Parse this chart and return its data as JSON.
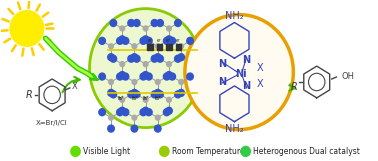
{
  "background_color": "#ffffff",
  "legend_items": [
    {
      "label": "Visible Light",
      "color": "#66dd00"
    },
    {
      "label": "Room Temperature",
      "color": "#99cc00"
    },
    {
      "label": "Heterogenous Dual catalyst",
      "color": "#33cc44"
    }
  ],
  "green_circle_color": "#88cc00",
  "green_circle_fill": "#eef8d0",
  "orange_circle_color": "#e8a000",
  "orange_circle_fill": "#fffbf0",
  "arrow_color": "#44bb00",
  "sun_color": "#ffee00",
  "lightning_color": "#44ee00",
  "text_color": "#3344bb",
  "node_blue": "#3355cc",
  "node_gray": "#aaaaaa",
  "bond_gray": "#999999"
}
